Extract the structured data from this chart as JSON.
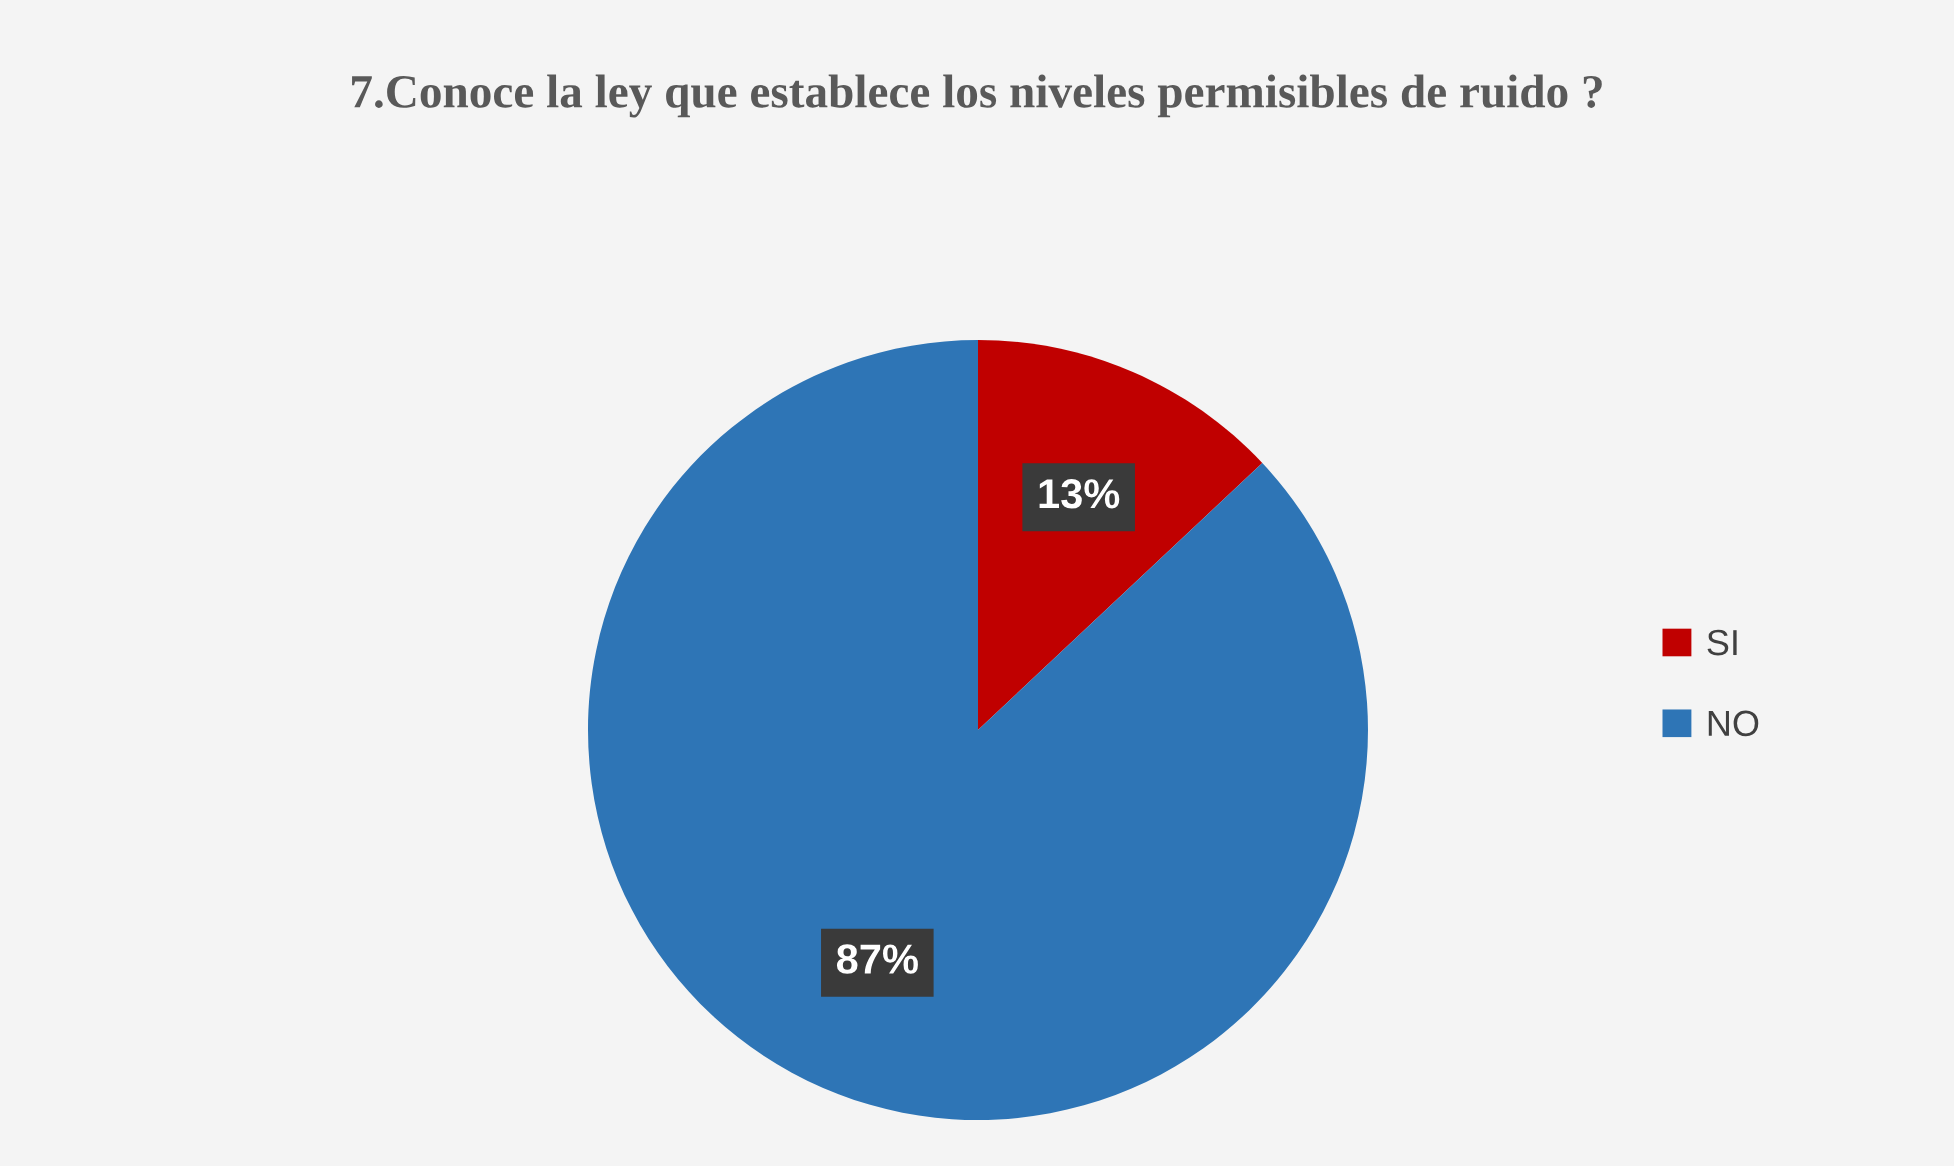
{
  "chart_data": {
    "type": "pie",
    "title": "7.Conoce la ley que establece los niveles permisibles de ruido ?",
    "categories": [
      "SI",
      "NO"
    ],
    "values": [
      13,
      87
    ],
    "colors": [
      "#c00000",
      "#2e75b6"
    ],
    "value_labels": [
      "13%",
      "87%"
    ],
    "legend": "right"
  }
}
